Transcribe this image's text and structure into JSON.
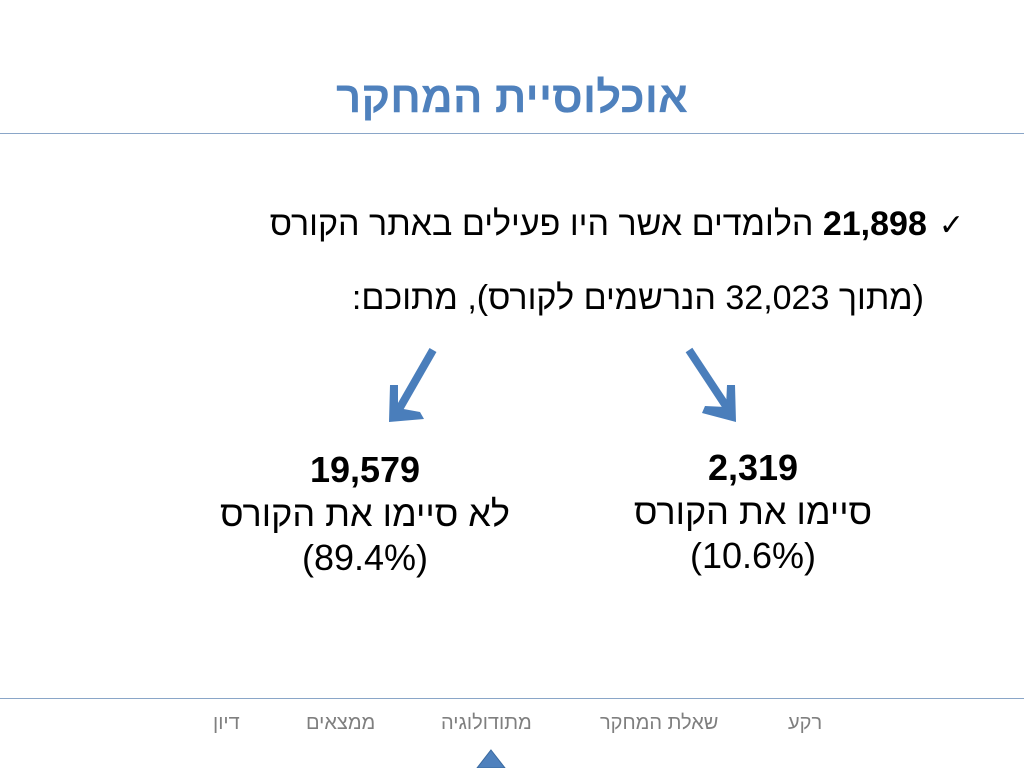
{
  "slide": {
    "title": "אוכלוסיית המחקר",
    "bullet": {
      "check_symbol": "✓",
      "count": "21,898",
      "text": "הלומדים אשר היו פעילים באתר הקורס",
      "subtext": "(מתוך 32,023 הנרשמים לקורס), מתוכם:"
    },
    "completed": {
      "count": "2,319",
      "label": "סיימו את הקורס",
      "percent": "(10.6%)"
    },
    "not_completed": {
      "count": "19,579",
      "label": "לא סיימו את הקורס",
      "percent": "(89.4%)"
    },
    "arrow_icon": "arrow-down-icon"
  },
  "nav": {
    "items": [
      "רקע",
      "שאלת המחקר",
      "מתודולוגיה",
      "ממצאים",
      "דיון"
    ],
    "active_index": 2
  },
  "colors": {
    "accent": "#4f81bd",
    "arrow": "#4a7ebb",
    "nav_text": "#7f7f7f",
    "rule": "#8aa6c8"
  }
}
